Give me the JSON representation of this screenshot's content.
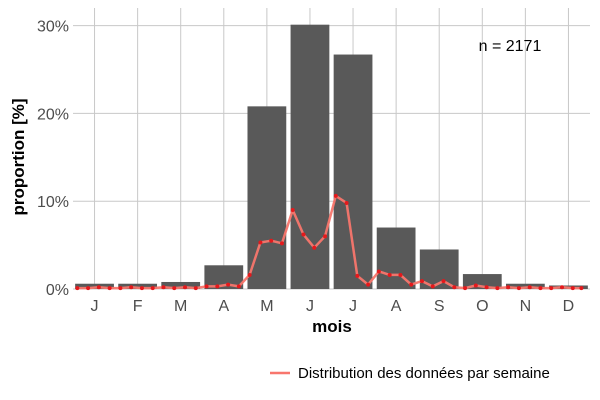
{
  "chart_data": {
    "type": "bar",
    "xlabel": "mois",
    "ylabel": "proportion [%]",
    "annotation": "n = 2171",
    "categories": [
      "J",
      "F",
      "M",
      "A",
      "M",
      "J",
      "J",
      "A",
      "S",
      "O",
      "N",
      "D"
    ],
    "values": [
      0.6,
      0.6,
      0.8,
      2.7,
      20.8,
      30.1,
      26.7,
      7.0,
      4.5,
      1.7,
      0.6,
      0.4
    ],
    "ylim": [
      0,
      32
    ],
    "yticks": [
      0,
      10,
      20,
      30
    ],
    "ytick_labels": [
      "0%",
      "10%",
      "20%",
      "30%"
    ],
    "grid": true,
    "series": [
      {
        "name": "Distribution des données par semaine",
        "type": "line",
        "x": [
          0.6,
          0.85,
          1.1,
          1.35,
          1.6,
          1.85,
          2.1,
          2.35,
          2.6,
          2.85,
          3.1,
          3.35,
          3.6,
          3.85,
          4.1,
          4.35,
          4.6,
          4.85,
          5.1,
          5.35,
          5.6,
          5.85,
          6.1,
          6.35,
          6.6,
          6.85,
          7.1,
          7.35,
          7.6,
          7.85,
          8.1,
          8.35,
          8.6,
          8.85,
          9.1,
          9.35,
          9.6,
          9.85,
          10.1,
          10.35,
          10.6,
          10.85,
          11.1,
          11.35,
          11.6,
          11.85,
          12.1,
          12.3
        ],
        "y": [
          0.1,
          0.1,
          0.2,
          0.1,
          0.1,
          0.2,
          0.1,
          0.1,
          0.2,
          0.1,
          0.2,
          0.1,
          0.3,
          0.3,
          0.5,
          0.3,
          1.6,
          5.3,
          5.5,
          5.2,
          9.0,
          6.2,
          4.7,
          6.0,
          10.6,
          9.8,
          1.5,
          0.5,
          2.0,
          1.6,
          1.6,
          0.5,
          0.9,
          0.3,
          0.9,
          0.2,
          0.1,
          0.4,
          0.2,
          0.1,
          0.2,
          0.1,
          0.2,
          0.1,
          0.1,
          0.2,
          0.1,
          0.1
        ]
      }
    ],
    "colors": {
      "bar": "#595959",
      "line": "#f8766d",
      "point": "#e4191c",
      "grid": "#c8c8c8"
    },
    "legend_position": "bottom-right"
  }
}
